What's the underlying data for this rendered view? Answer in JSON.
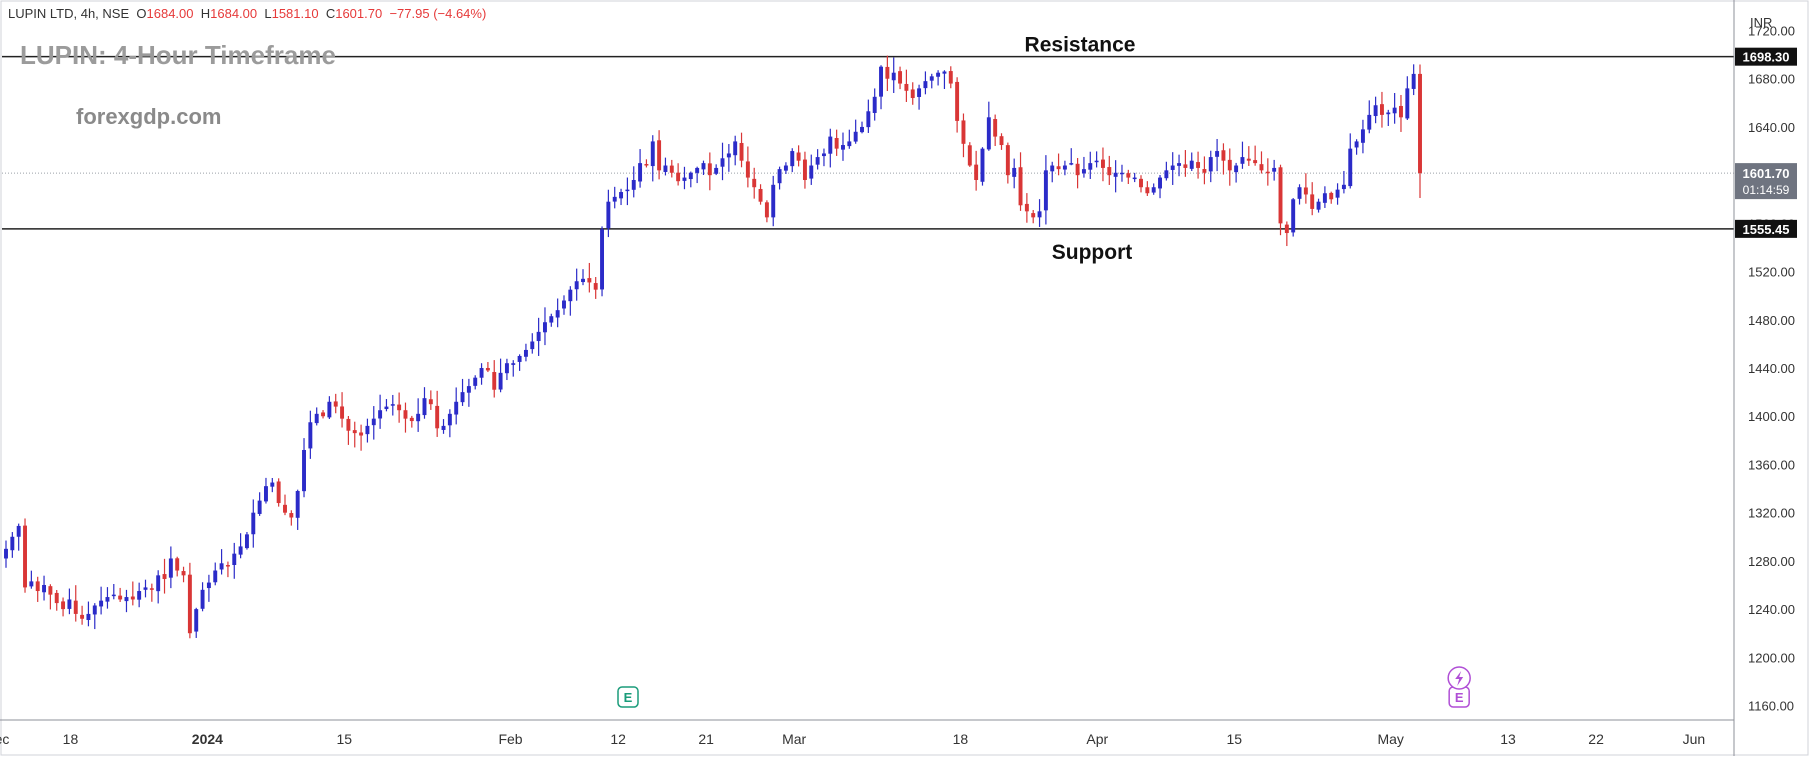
{
  "header": {
    "symbol": "LUPIN LTD, 4h, NSE",
    "open_label": "O",
    "open": "1684.00",
    "high_label": "H",
    "high": "1684.00",
    "low_label": "L",
    "low": "1581.10",
    "close_label": "C",
    "close": "1601.70",
    "change": "−77.95 (−4.64%)"
  },
  "title": "LUPIN: 4-Hour Timeframe",
  "watermark": "forexgdp.com",
  "currency": "INR",
  "annotations": {
    "resistance_label": "Resistance",
    "support_label": "Support",
    "earnings_marker": "E"
  },
  "badges": {
    "resistance_value": "1698.30",
    "support_value": "1555.45",
    "last_price": "1601.70",
    "countdown": "01:14:59"
  },
  "colors": {
    "up": "#2b2bc8",
    "down": "#d93636",
    "level_line": "#222222",
    "earnings_green": "#1a9c7a",
    "earnings_purple": "#b04fd6",
    "last_price_badge": "#6f7480"
  },
  "chart_data": {
    "type": "candlestick",
    "timeframe": "4h",
    "y_axis": {
      "ticks": [
        1720,
        1680,
        1640,
        1600,
        1560,
        1520,
        1480,
        1440,
        1400,
        1360,
        1320,
        1280,
        1240,
        1200,
        1160
      ],
      "tick_labels": [
        "1720.00",
        "1680.00",
        "1640.00",
        "1600.00",
        "1560.00",
        "1520.00",
        "1480.00",
        "1440.00",
        "1400.00",
        "1360.00",
        "1320.00",
        "1280.00",
        "1240.00",
        "1200.00",
        "1160.00"
      ],
      "range": [
        1148,
        1742
      ]
    },
    "x_axis": {
      "labels": [
        "ec",
        "18",
        "2024",
        "15",
        "Feb",
        "12",
        "21",
        "Mar",
        "18",
        "Apr",
        "15",
        "May",
        "13",
        "22",
        "Jun"
      ],
      "label_dates": [
        "2023-12-11",
        "2023-12-18",
        "2024-01-01",
        "2024-01-15",
        "2024-02-01",
        "2024-02-12",
        "2024-02-21",
        "2024-03-01",
        "2024-03-18",
        "2024-04-01",
        "2024-04-15",
        "2024-05-01",
        "2024-05-13",
        "2024-05-22",
        "2024-06-01"
      ],
      "bold": [
        "2024"
      ],
      "range": [
        "2023-12-11",
        "2024-06-05"
      ]
    },
    "levels": [
      {
        "name": "Resistance",
        "value": 1698.3
      },
      {
        "name": "Support",
        "value": 1555.45
      }
    ],
    "last_price": 1601.7,
    "earnings_dates": [
      "2024-02-08",
      "2024-05-08"
    ],
    "closes": [
      1290,
      1300,
      1309,
      1258,
      1263,
      1255,
      1260,
      1252,
      1245,
      1240,
      1248,
      1236,
      1232,
      1236,
      1243,
      1247,
      1250,
      1252,
      1248,
      1250,
      1248,
      1255,
      1258,
      1256,
      1268,
      1265,
      1282,
      1272,
      1268,
      1220,
      1240,
      1256,
      1262,
      1272,
      1278,
      1276,
      1286,
      1292,
      1302,
      1320,
      1330,
      1342,
      1345,
      1328,
      1320,
      1316,
      1338,
      1372,
      1395,
      1402,
      1400,
      1412,
      1408,
      1398,
      1388,
      1386,
      1384,
      1392,
      1398,
      1405,
      1408,
      1410,
      1405,
      1398,
      1396,
      1402,
      1415,
      1410,
      1390,
      1392,
      1402,
      1412,
      1420,
      1425,
      1432,
      1440,
      1438,
      1422,
      1436,
      1444,
      1444,
      1450,
      1455,
      1462,
      1470,
      1478,
      1483,
      1488,
      1496,
      1505,
      1512,
      1514,
      1511,
      1505,
      1555,
      1578,
      1582,
      1586,
      1588,
      1596,
      1610,
      1608,
      1628,
      1604,
      1608,
      1602,
      1595,
      1598,
      1602,
      1606,
      1610,
      1600,
      1606,
      1614,
      1618,
      1628,
      1612,
      1598,
      1590,
      1578,
      1565,
      1592,
      1605,
      1608,
      1620,
      1612,
      1596,
      1608,
      1615,
      1618,
      1632,
      1622,
      1625,
      1628,
      1636,
      1640,
      1653,
      1665,
      1690,
      1680,
      1685,
      1676,
      1670,
      1664,
      1672,
      1678,
      1682,
      1685,
      1686,
      1676,
      1645,
      1626,
      1608,
      1596,
      1622,
      1648,
      1632,
      1625,
      1600,
      1606,
      1575,
      1570,
      1565,
      1570,
      1604,
      1608,
      1605,
      1608,
      1610,
      1600,
      1605,
      1610,
      1612,
      1606,
      1600,
      1602,
      1602,
      1598,
      1598,
      1590,
      1585,
      1590,
      1598,
      1604,
      1608,
      1610,
      1606,
      1612,
      1606,
      1602,
      1615,
      1620,
      1612,
      1604,
      1608,
      1615,
      1612,
      1610,
      1604,
      1602,
      1606,
      1560,
      1552,
      1580,
      1590,
      1584,
      1572,
      1578,
      1585,
      1580,
      1588,
      1592,
      1622,
      1628,
      1638,
      1650,
      1658,
      1650,
      1652,
      1656,
      1648,
      1672,
      1684,
      1601.7
    ]
  }
}
